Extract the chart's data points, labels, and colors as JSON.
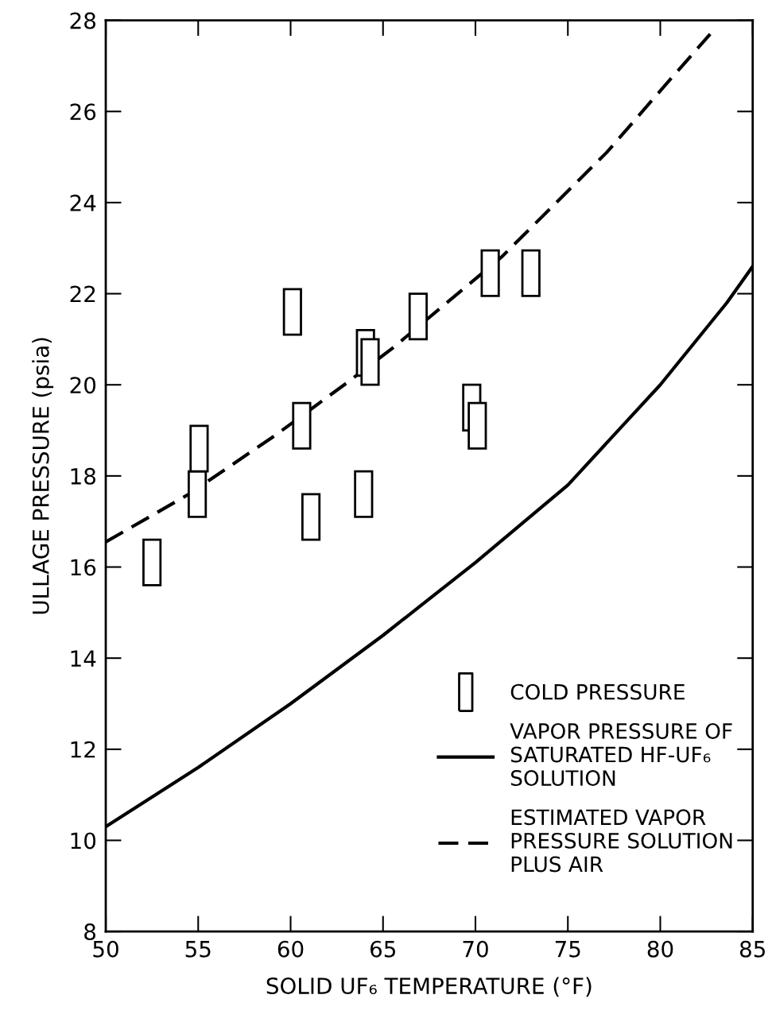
{
  "chart_data": {
    "type": "bar",
    "xlabel": "SOLID UF₆ TEMPERATURE (°F)",
    "ylabel": "ULLAGE PRESSURE (psia)",
    "xlim": [
      50,
      85
    ],
    "xticks": [
      50,
      55,
      60,
      65,
      70,
      75,
      80,
      85
    ],
    "ylim": [
      8,
      28
    ],
    "yticks": [
      8,
      10,
      12,
      14,
      16,
      18,
      20,
      22,
      24,
      26,
      28
    ],
    "grid": false,
    "legend": "bottom right",
    "series": [
      {
        "name": "COLD PRESSURE",
        "color": "#000000",
        "x": [
          52.5,
          54.95,
          55.05,
          60.1,
          60.6,
          61.1,
          63.95,
          64.05,
          64.3,
          66.9,
          69.8,
          70.1,
          70.8,
          73.0
        ],
        "base": [
          15.6,
          17.1,
          18.1,
          21.1,
          18.6,
          16.6,
          17.1,
          20.2,
          20.0,
          21.0,
          19.0,
          18.6,
          21.95,
          21.95
        ],
        "values": [
          1.0,
          1.0,
          1.0,
          1.0,
          1.0,
          1.0,
          1.0,
          1.0,
          1.0,
          1.0,
          1.0,
          1.0,
          1.0,
          1.0
        ]
      },
      {
        "name": "VAPOR PRESSURE OF\nSATURATED HF-UF₆\nSOLUTION",
        "type": "line",
        "line_style": "solid",
        "color": "#000000",
        "x": [
          50,
          55,
          60,
          65,
          70,
          75,
          80,
          83.6,
          85
        ],
        "values": [
          10.3,
          11.6,
          13.0,
          14.5,
          16.1,
          17.8,
          20.0,
          21.8,
          22.6
        ]
      },
      {
        "name": "ESTIMATED VAPOR\nPRESSURE SOLUTION\nPLUS AIR",
        "type": "line",
        "line_style": "dashed",
        "color": "#000000",
        "x": [
          50,
          54.5,
          59.2,
          62.9,
          65.5,
          71.4,
          77.1,
          80.1,
          82.7
        ],
        "values": [
          16.55,
          17.6,
          18.9,
          20.0,
          20.8,
          22.8,
          25.1,
          26.5,
          27.7
        ]
      }
    ]
  }
}
